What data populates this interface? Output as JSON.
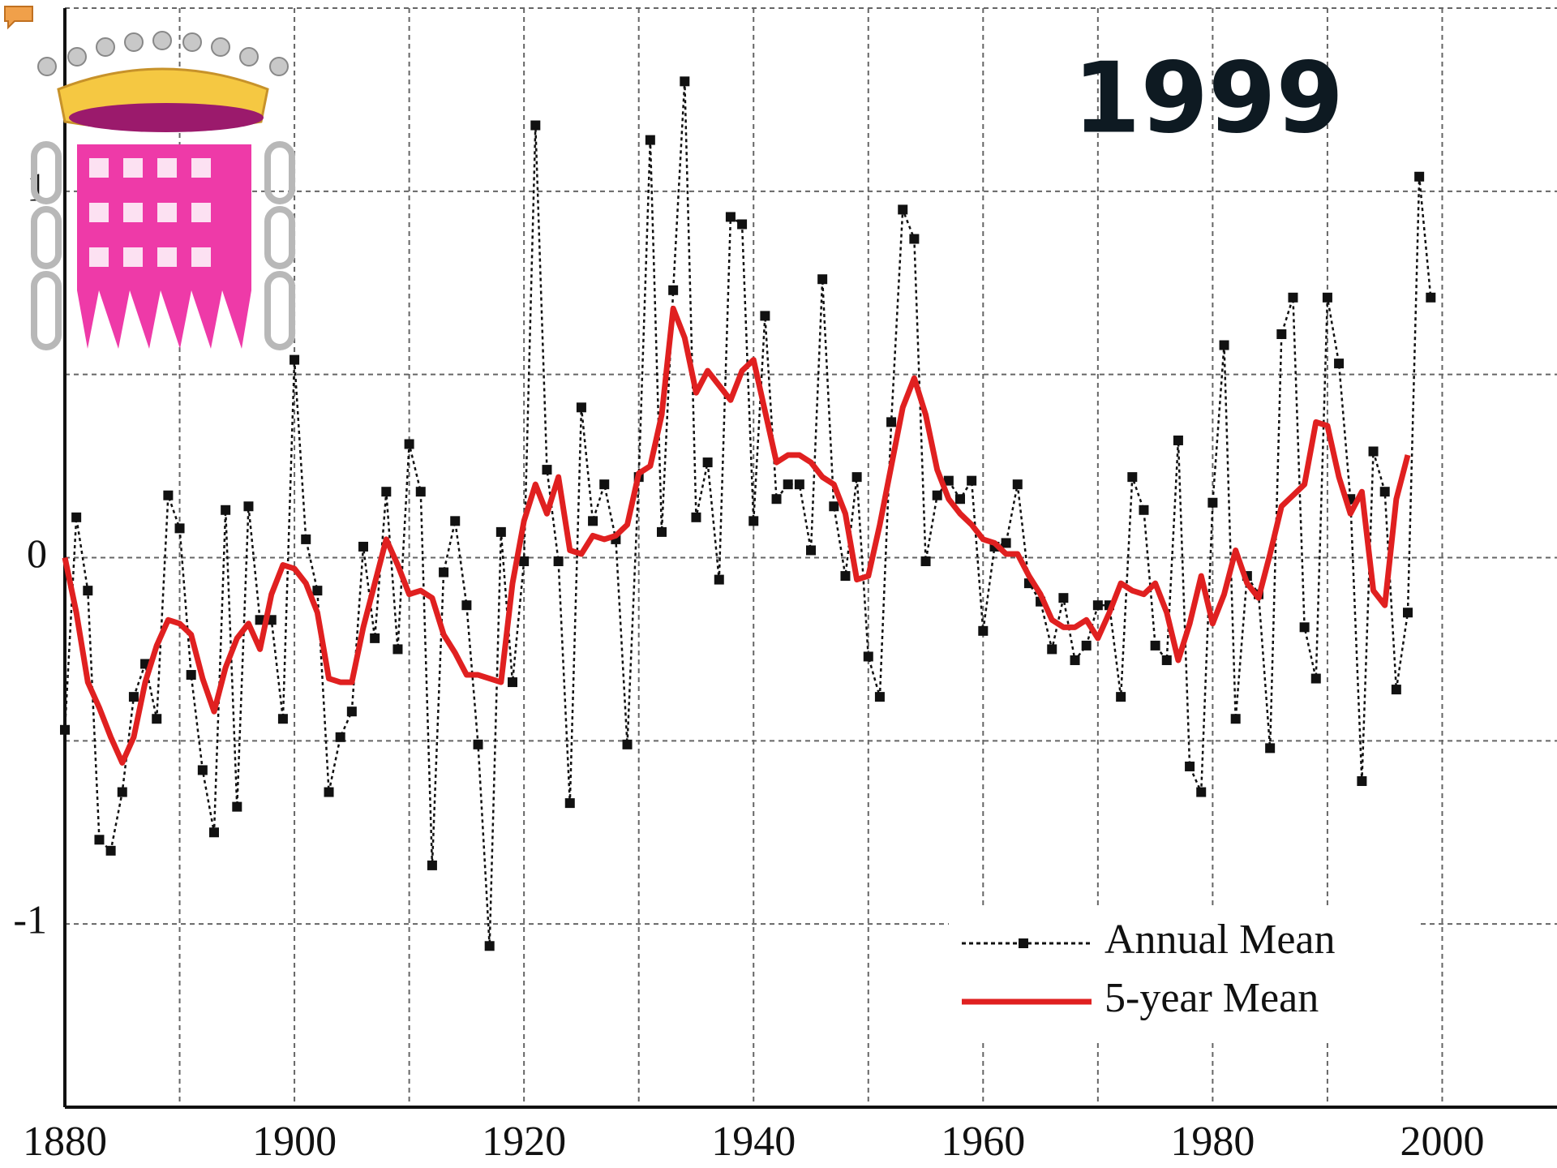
{
  "chart_data": {
    "type": "line",
    "title": "1999",
    "x": [
      1880,
      1881,
      1882,
      1883,
      1884,
      1885,
      1886,
      1887,
      1888,
      1889,
      1890,
      1891,
      1892,
      1893,
      1894,
      1895,
      1896,
      1897,
      1898,
      1899,
      1900,
      1901,
      1902,
      1903,
      1904,
      1905,
      1906,
      1907,
      1908,
      1909,
      1910,
      1911,
      1912,
      1913,
      1914,
      1915,
      1916,
      1917,
      1918,
      1919,
      1920,
      1921,
      1922,
      1923,
      1924,
      1925,
      1926,
      1927,
      1928,
      1929,
      1930,
      1931,
      1932,
      1933,
      1934,
      1935,
      1936,
      1937,
      1938,
      1939,
      1940,
      1941,
      1942,
      1943,
      1944,
      1945,
      1946,
      1947,
      1948,
      1949,
      1950,
      1951,
      1952,
      1953,
      1954,
      1955,
      1956,
      1957,
      1958,
      1959,
      1960,
      1961,
      1962,
      1963,
      1964,
      1965,
      1966,
      1967,
      1968,
      1969,
      1970,
      1971,
      1972,
      1973,
      1974,
      1975,
      1976,
      1977,
      1978,
      1979,
      1980,
      1981,
      1982,
      1983,
      1984,
      1985,
      1986,
      1987,
      1988,
      1989,
      1990,
      1991,
      1992,
      1993,
      1994,
      1995,
      1996,
      1997,
      1998,
      1999
    ],
    "series": [
      {
        "name": "Annual Mean",
        "color": "#111111",
        "style": "dotted-markers",
        "values": [
          -0.47,
          0.11,
          -0.09,
          -0.77,
          -0.8,
          -0.64,
          -0.38,
          -0.29,
          -0.44,
          0.17,
          0.08,
          -0.32,
          -0.58,
          -0.75,
          0.13,
          -0.68,
          0.14,
          -0.17,
          -0.17,
          -0.44,
          0.54,
          0.05,
          -0.09,
          -0.64,
          -0.49,
          -0.42,
          0.03,
          -0.22,
          0.18,
          -0.25,
          0.31,
          0.18,
          -0.84,
          -0.04,
          0.1,
          -0.13,
          -0.51,
          -1.06,
          0.07,
          -0.34,
          -0.01,
          1.18,
          0.24,
          -0.01,
          -0.67,
          0.41,
          0.1,
          0.2,
          0.05,
          -0.51,
          0.22,
          1.14,
          0.07,
          0.73,
          1.3,
          0.11,
          0.26,
          -0.06,
          0.93,
          0.91,
          0.1,
          0.66,
          0.16,
          0.2,
          0.2,
          0.02,
          0.76,
          0.14,
          -0.05,
          0.22,
          -0.27,
          -0.38,
          0.37,
          0.95,
          0.87,
          -0.01,
          0.17,
          0.21,
          0.16,
          0.21,
          -0.2,
          0.03,
          0.04,
          0.2,
          -0.07,
          -0.12,
          -0.25,
          -0.11,
          -0.28,
          -0.24,
          -0.13,
          -0.13,
          -0.38,
          0.22,
          0.13,
          -0.24,
          -0.28,
          0.32,
          -0.57,
          -0.64,
          0.15,
          0.58,
          -0.44,
          -0.05,
          -0.1,
          -0.52,
          0.61,
          0.71,
          -0.19,
          -0.33,
          0.71,
          0.53,
          0.16,
          -0.61,
          0.29,
          0.18,
          -0.36,
          -0.15,
          1.04,
          0.71
        ]
      },
      {
        "name": "5-year Mean",
        "color": "#e02020",
        "style": "solid",
        "values": [
          0.0,
          -0.15,
          -0.34,
          -0.41,
          -0.49,
          -0.56,
          -0.49,
          -0.34,
          -0.24,
          -0.17,
          -0.18,
          -0.21,
          -0.33,
          -0.42,
          -0.3,
          -0.22,
          -0.18,
          -0.25,
          -0.1,
          -0.02,
          -0.03,
          -0.07,
          -0.15,
          -0.33,
          -0.34,
          -0.34,
          -0.19,
          -0.07,
          0.05,
          -0.02,
          -0.1,
          -0.09,
          -0.11,
          -0.21,
          -0.26,
          -0.32,
          -0.32,
          -0.33,
          -0.34,
          -0.07,
          0.1,
          0.2,
          0.12,
          0.22,
          0.02,
          0.01,
          0.06,
          0.05,
          0.06,
          0.09,
          0.23,
          0.25,
          0.39,
          0.68,
          0.6,
          0.45,
          0.51,
          0.47,
          0.43,
          0.51,
          0.54,
          0.4,
          0.26,
          0.28,
          0.28,
          0.26,
          0.22,
          0.2,
          0.12,
          -0.06,
          -0.05,
          0.09,
          0.25,
          0.41,
          0.49,
          0.39,
          0.24,
          0.16,
          0.12,
          0.09,
          0.05,
          0.04,
          0.01,
          0.01,
          -0.05,
          -0.1,
          -0.17,
          -0.19,
          -0.19,
          -0.17,
          -0.22,
          -0.15,
          -0.07,
          -0.09,
          -0.1,
          -0.07,
          -0.15,
          -0.28,
          -0.18,
          -0.05,
          -0.18,
          -0.1,
          0.02,
          -0.07,
          -0.11,
          0.01,
          0.14,
          0.17,
          0.2,
          0.37,
          0.36,
          0.22,
          0.12,
          0.18,
          -0.09,
          -0.13,
          0.16,
          0.28,
          null,
          null
        ]
      }
    ],
    "xlim": [
      1880,
      2010
    ],
    "xticks": [
      1880,
      1900,
      1920,
      1940,
      1960,
      1980,
      2000
    ],
    "x_minor_grid": [
      1890,
      1910,
      1930,
      1950,
      1970,
      1990
    ],
    "ylim": [
      -1.5,
      1.5
    ],
    "yticks": [
      -1,
      0,
      1
    ],
    "y_minor_grid": [
      -0.5,
      0.5,
      1.5
    ],
    "grid": true,
    "legend": "lower right"
  }
}
